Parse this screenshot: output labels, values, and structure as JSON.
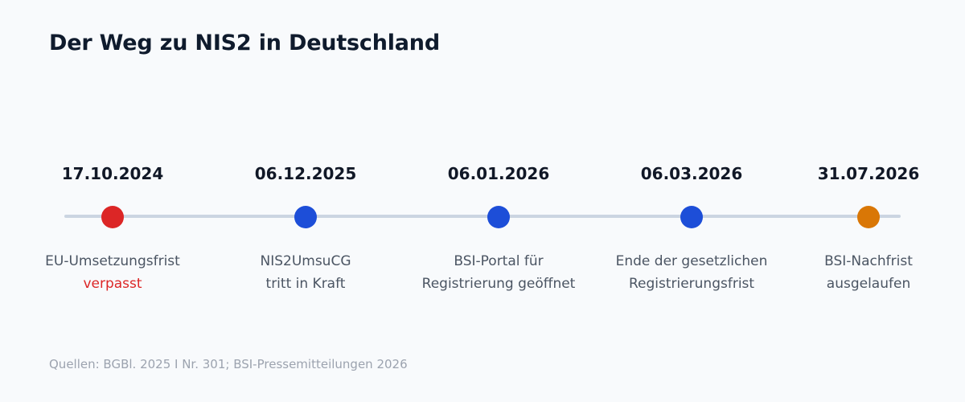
{
  "title": "Der Weg zu NIS2 in Deutschland",
  "colors": {
    "background": "#f8fafc",
    "track": "#cbd5e1",
    "missed": "#dc2626",
    "milestone": "#1d4ed8",
    "final": "#d97706"
  },
  "milestones": [
    {
      "date": "17.10.2024",
      "label_lines": [
        "EU-Umsetzungsfrist",
        "verpasst"
      ],
      "dot_color": "#dc2626",
      "status": "missed"
    },
    {
      "date": "06.12.2025",
      "label_lines": [
        "NIS2UmsuCG",
        "tritt in Kraft"
      ],
      "dot_color": "#1d4ed8",
      "status": "milestone"
    },
    {
      "date": "06.01.2026",
      "label_lines": [
        "BSI-Portal für",
        "Registrierung geöffnet"
      ],
      "dot_color": "#1d4ed8",
      "status": "milestone"
    },
    {
      "date": "06.03.2026",
      "label_lines": [
        "Ende der gesetzlichen",
        "Registrierungsfrist"
      ],
      "dot_color": "#1d4ed8",
      "status": "milestone"
    },
    {
      "date": "31.07.2026",
      "label_lines": [
        "BSI-Nachfrist",
        "ausgelaufen"
      ],
      "dot_color": "#d97706",
      "status": "final"
    }
  ],
  "source": "Quellen: BGBl. 2025 I Nr. 301; BSI-Pressemitteilungen 2026"
}
